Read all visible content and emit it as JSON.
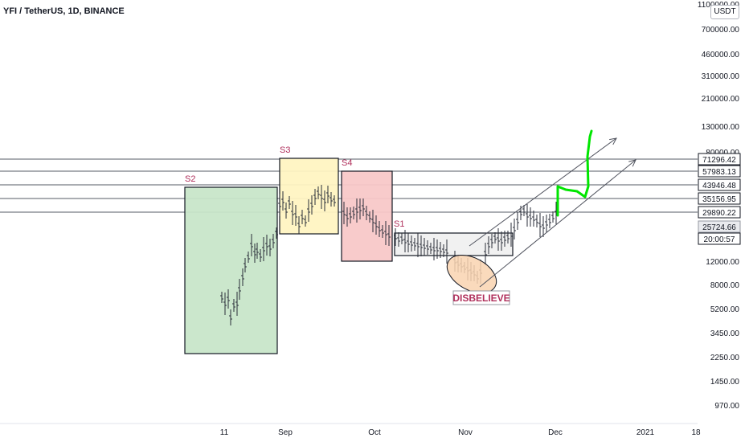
{
  "chart_data": {
    "type": "candlestick",
    "title": "YFI / TetherUS, 1D, BINANCE",
    "currency": "USDT",
    "y_scale": "log",
    "x_ticks": [
      "11",
      "Sep",
      "Oct",
      "Nov",
      "Dec",
      "2021",
      "18"
    ],
    "y_ticks": [
      "1100000.00",
      "700000.00",
      "460000.00",
      "310000.00",
      "210000.00",
      "130000.00",
      "80000.00",
      "12000.00",
      "8000.00",
      "5200.00",
      "3450.00",
      "2250.00",
      "1450.00",
      "970.00"
    ],
    "price_levels": [
      "71296.42",
      "57983.13",
      "43946.48",
      "35156.95",
      "29890.22"
    ],
    "current_price": "25724.66",
    "countdown": "20:00:57",
    "zones": [
      {
        "label": "S2",
        "color": "#c8e6c9"
      },
      {
        "label": "S3",
        "color": "#fff4c2"
      },
      {
        "label": "S4",
        "color": "#f8c8c8"
      },
      {
        "label": "S1",
        "color": "#f0f0f0"
      }
    ],
    "annotation": "DISBELIEVE",
    "label_color": "#b0305c",
    "projection_color": "#00e600"
  }
}
